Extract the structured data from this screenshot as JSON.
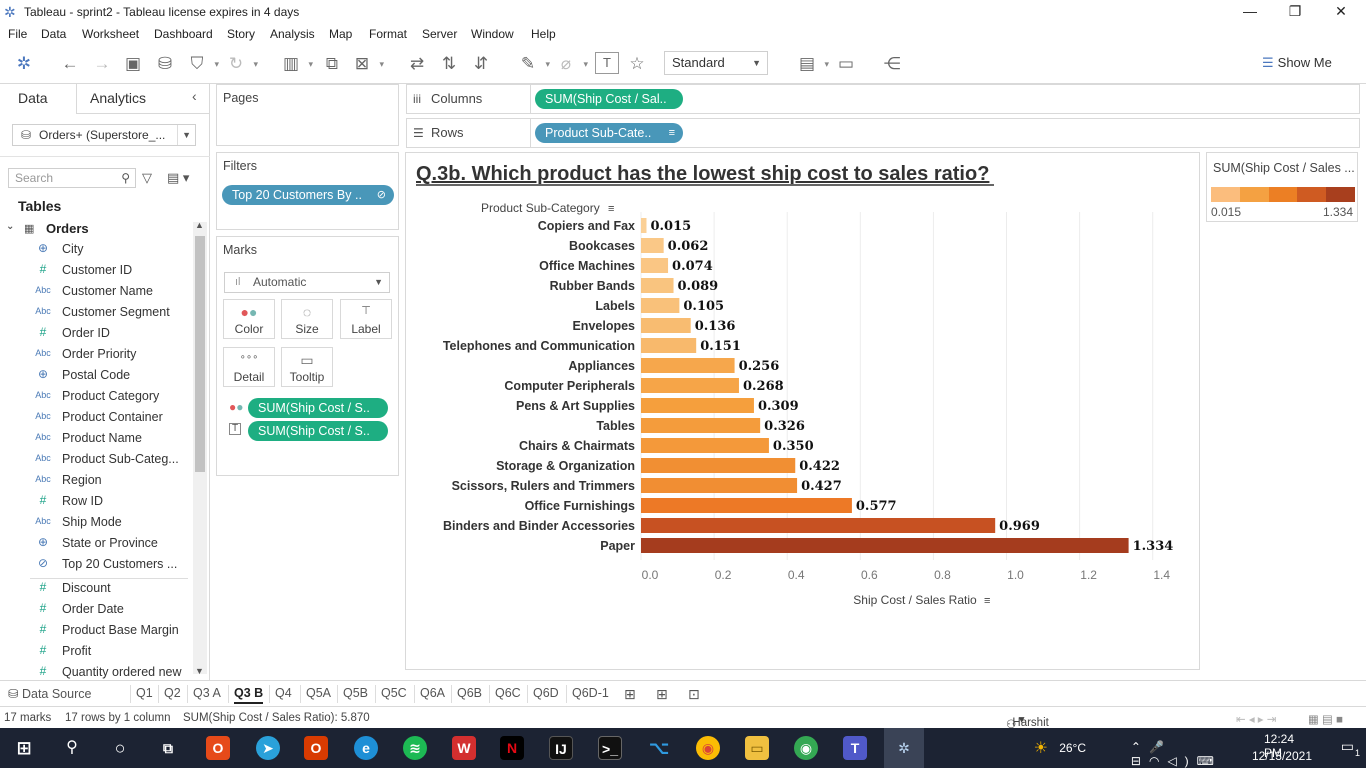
{
  "window": {
    "title": "Tableau - sprint2 - Tableau license expires in 4 days",
    "minimize": "—",
    "restore": "❐",
    "close": "✕"
  },
  "menu": [
    "File",
    "Data",
    "Worksheet",
    "Dashboard",
    "Story",
    "Analysis",
    "Map",
    "Format",
    "Server",
    "Window",
    "Help"
  ],
  "toolbar": {
    "fit_select": "Standard",
    "show_me": "Show Me"
  },
  "datapane": {
    "tab_data": "Data",
    "tab_analytics": "Analytics",
    "datasource": "Orders+ (Superstore_...",
    "search_placeholder": "Search",
    "tables_header": "Tables",
    "table_name": "Orders",
    "dimensions": [
      {
        "type": "geo",
        "name": "City"
      },
      {
        "type": "num",
        "name": "Customer ID"
      },
      {
        "type": "abc",
        "name": "Customer Name"
      },
      {
        "type": "abc",
        "name": "Customer Segment"
      },
      {
        "type": "num",
        "name": "Order ID"
      },
      {
        "type": "abc",
        "name": "Order Priority"
      },
      {
        "type": "geo",
        "name": "Postal Code"
      },
      {
        "type": "abc",
        "name": "Product Category"
      },
      {
        "type": "abc",
        "name": "Product Container"
      },
      {
        "type": "abc",
        "name": "Product Name"
      },
      {
        "type": "abc",
        "name": "Product Sub-Categ..."
      },
      {
        "type": "abc",
        "name": "Region"
      },
      {
        "type": "num",
        "name": "Row ID"
      },
      {
        "type": "abc",
        "name": "Ship Mode"
      },
      {
        "type": "geo",
        "name": "State or Province"
      },
      {
        "type": "set",
        "name": "Top 20 Customers ..."
      }
    ],
    "measures": [
      {
        "type": "num",
        "name": "Discount"
      },
      {
        "type": "num",
        "name": "Order Date"
      },
      {
        "type": "num",
        "name": "Product Base Margin"
      },
      {
        "type": "num",
        "name": "Profit"
      },
      {
        "type": "num",
        "name": "Quantity ordered new"
      }
    ]
  },
  "cards": {
    "pages": "Pages",
    "filters": "Filters",
    "filter_pill": "Top 20 Customers By ..",
    "marks": "Marks",
    "marks_type": "Automatic",
    "mark_buttons": [
      "Color",
      "Size",
      "Label",
      "Detail",
      "Tooltip"
    ],
    "mark_pills": [
      "SUM(Ship Cost / S..",
      "SUM(Ship Cost / S.."
    ]
  },
  "shelves": {
    "columns_label": "Columns",
    "columns_pill": "SUM(Ship Cost / Sal..",
    "rows_label": "Rows",
    "rows_pill": "Product Sub-Cate.."
  },
  "legend": {
    "title": "SUM(Ship Cost / Sales ...",
    "min": "0.015",
    "max": "1.334",
    "colors": [
      "#fbbd7d",
      "#f4a142",
      "#ec7f24",
      "#cf5b22",
      "#a83f1e"
    ]
  },
  "chart_data": {
    "type": "bar",
    "title": "Q.3b. Which product has the lowest ship cost to sales ratio?",
    "row_header": "Product Sub-Category",
    "xlabel": "Ship Cost / Sales Ratio",
    "xlim": [
      0,
      1.45
    ],
    "xticks": [
      "0.0",
      "0.2",
      "0.4",
      "0.6",
      "0.8",
      "1.0",
      "1.2",
      "1.4"
    ],
    "categories": [
      "Copiers and Fax",
      "Bookcases",
      "Office Machines",
      "Rubber Bands",
      "Labels",
      "Envelopes",
      "Telephones and Communication",
      "Appliances",
      "Computer Peripherals",
      "Pens & Art Supplies",
      "Tables",
      "Chairs & Chairmats",
      "Storage & Organization",
      "Scissors, Rulers and Trimmers",
      "Office Furnishings",
      "Binders and Binder Accessories",
      "Paper"
    ],
    "values": [
      0.015,
      0.062,
      0.074,
      0.089,
      0.105,
      0.136,
      0.151,
      0.256,
      0.268,
      0.309,
      0.326,
      0.35,
      0.422,
      0.427,
      0.577,
      0.969,
      1.334
    ],
    "labels": [
      "0.015",
      "0.062",
      "0.074",
      "0.089",
      "0.105",
      "0.136",
      "0.151",
      "0.256",
      "0.268",
      "0.309",
      "0.326",
      "0.350",
      "0.422",
      "0.427",
      "0.577",
      "0.969",
      "1.334"
    ]
  },
  "sheet_tabs": {
    "data_source": "Data Source",
    "tabs": [
      "Q1",
      "Q2",
      "Q3 A",
      "Q3 B",
      "Q4",
      "Q5A",
      "Q5B",
      "Q5C",
      "Q6A",
      "Q6B",
      "Q6C",
      "Q6D",
      "Q6D-1"
    ],
    "active": "Q3 B"
  },
  "status": {
    "marks": "17 marks",
    "rows": "17 rows by 1 column",
    "sum": "SUM(Ship Cost / Sales Ratio): 5.870",
    "user": "Harshit Rathod"
  },
  "taskbar": {
    "temperature": "26°C",
    "time": "12:24 PM",
    "date": "12/13/2021",
    "notifications": "1"
  }
}
